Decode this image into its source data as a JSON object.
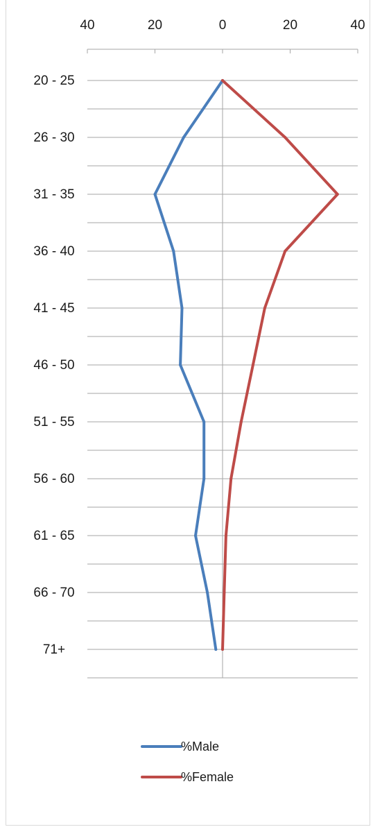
{
  "chart_data": {
    "type": "line",
    "orientation": "vertical-categories",
    "title": "",
    "xlabel": "",
    "ylabel": "",
    "categories": [
      "20 - 25",
      "26 - 30",
      "31 - 35",
      "36 - 40",
      "41 - 45",
      "46 - 50",
      "51 - 55",
      "56 - 60",
      "61 - 65",
      "66 - 70",
      "71+"
    ],
    "x_tick_labels": [
      "40",
      "20",
      "0",
      "20",
      "40"
    ],
    "x_tick_values": [
      -40,
      -20,
      0,
      20,
      40
    ],
    "xlim": [
      -40,
      40
    ],
    "series": [
      {
        "name": "%Male",
        "color": "#4a7ebb",
        "values": [
          0,
          -11.5,
          -20,
          -14.5,
          -12,
          -12.5,
          -5.5,
          -5.5,
          -8,
          -4.5,
          -2
        ]
      },
      {
        "name": "%Female",
        "color": "#be4b48",
        "values": [
          0,
          18.5,
          34,
          18.5,
          12.5,
          9,
          5.5,
          2.5,
          1,
          0.5,
          0
        ]
      }
    ],
    "grid": true,
    "legend_position": "bottom"
  }
}
